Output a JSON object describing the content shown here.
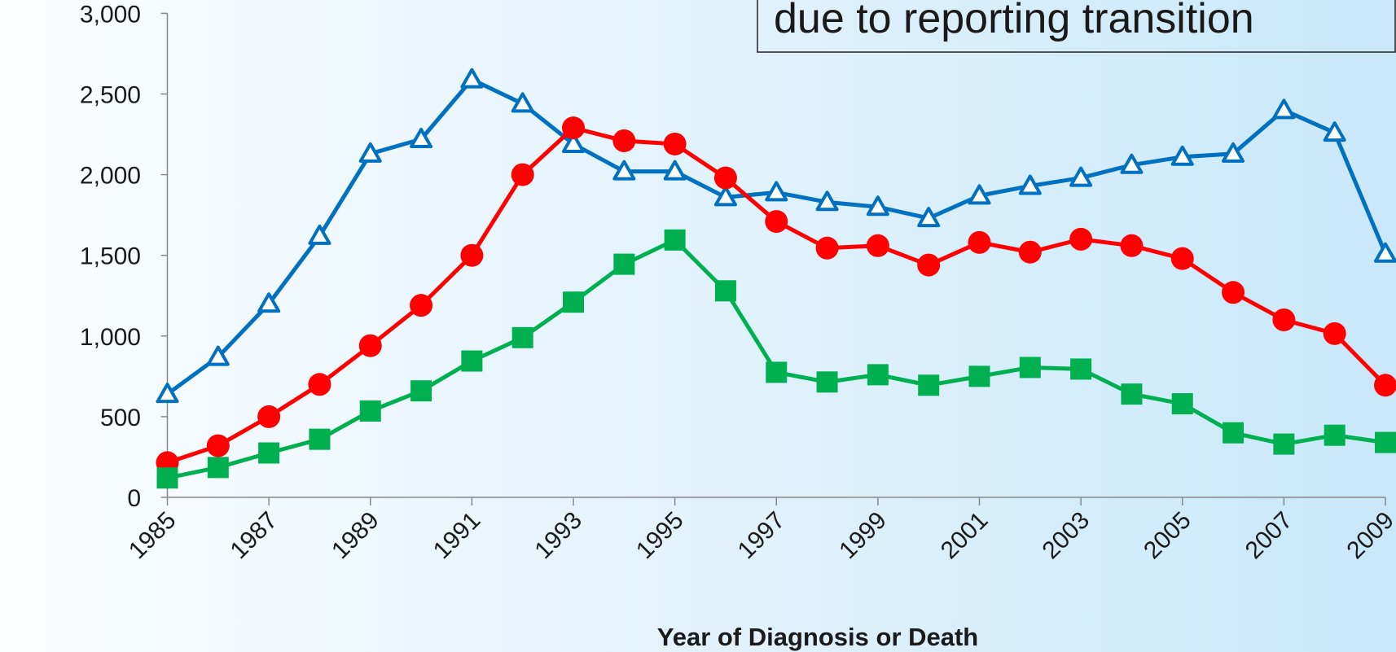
{
  "chart_data": {
    "type": "line",
    "annotation": "due to reporting transition",
    "x_label": "Year of Diagnosis or Death",
    "x": [
      1985,
      1986,
      1987,
      1988,
      1989,
      1990,
      1991,
      1992,
      1993,
      1994,
      1995,
      1996,
      1997,
      1998,
      1999,
      2000,
      2001,
      2002,
      2003,
      2004,
      2005,
      2006,
      2007,
      2008,
      2009
    ],
    "xlim": [
      1985,
      2009
    ],
    "xticks": [
      1985,
      1987,
      1989,
      1991,
      1993,
      1995,
      1997,
      1999,
      2001,
      2003,
      2005,
      2007,
      2009
    ],
    "ylim": [
      0,
      3000
    ],
    "yticks": [
      0,
      500,
      {
        "value": 1000,
        "label": "1,000"
      },
      {
        "value": 1500,
        "label": "1,500"
      },
      {
        "value": 2000,
        "label": "2,000"
      },
      {
        "value": 2500,
        "label": "2,500"
      },
      {
        "value": 3000,
        "label": "3,000"
      }
    ],
    "series": [
      {
        "color": "#0070c0",
        "marker": "triangle",
        "values": [
          640,
          870,
          1200,
          1620,
          2130,
          2220,
          2590,
          2440,
          2190,
          2020,
          2020,
          1860,
          1890,
          1830,
          1800,
          1730,
          1870,
          1930,
          1980,
          2060,
          2110,
          2130,
          2400,
          2260,
          1510
        ]
      },
      {
        "color": "#ff0000",
        "marker": "circle",
        "values": [
          215,
          320,
          500,
          700,
          940,
          1190,
          1500,
          2000,
          2290,
          2210,
          2190,
          1980,
          1710,
          1545,
          1560,
          1440,
          1580,
          1520,
          1600,
          1560,
          1480,
          1270,
          1100,
          1015,
          695
        ]
      },
      {
        "color": "#00b050",
        "marker": "square",
        "values": [
          120,
          185,
          275,
          360,
          535,
          660,
          845,
          990,
          1210,
          1445,
          1595,
          1280,
          775,
          715,
          760,
          695,
          750,
          805,
          795,
          640,
          580,
          400,
          330,
          385,
          340
        ]
      }
    ]
  }
}
